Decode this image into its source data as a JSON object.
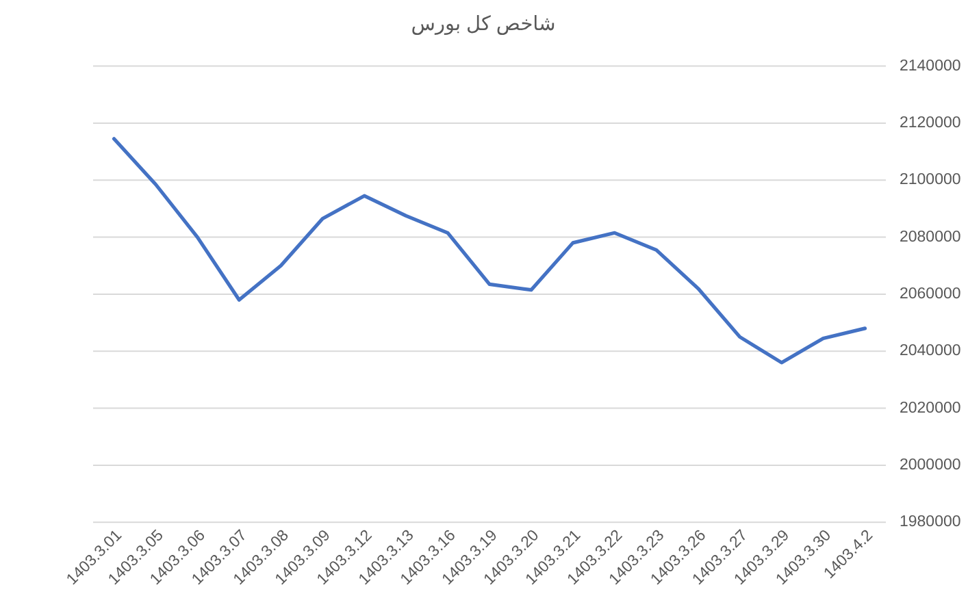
{
  "chart_data": {
    "type": "line",
    "title": "شاخص کل بورس",
    "categories": [
      "1403.3.01",
      "1403.3.05",
      "1403.3.06",
      "1403.3.07",
      "1403.3.08",
      "1403.3.09",
      "1403.3.12",
      "1403.3.13",
      "1403.3.16",
      "1403.3.19",
      "1403.3.20",
      "1403.3.21",
      "1403.3.22",
      "1403.3.23",
      "1403.3.26",
      "1403.3.27",
      "1403.3.29",
      "1403.3.30",
      "1403.4.2"
    ],
    "values": [
      2114500,
      2098500,
      2080000,
      2058000,
      2070000,
      2086500,
      2094500,
      2087500,
      2081500,
      2063500,
      2061500,
      2078000,
      2081500,
      2075500,
      2062000,
      2045000,
      2036000,
      2044500,
      2048000
    ],
    "color": "#4472c4",
    "ylim": [
      1980000,
      2140000
    ],
    "yticks": [
      1980000,
      2000000,
      2020000,
      2040000,
      2060000,
      2080000,
      2100000,
      2120000,
      2140000
    ],
    "grid": "y"
  }
}
